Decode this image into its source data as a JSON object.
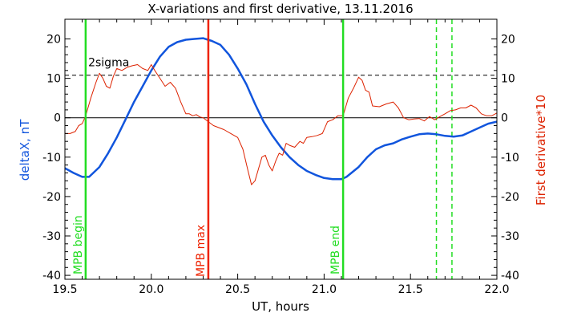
{
  "chart_data": {
    "type": "line",
    "title": "X-variations and first derivative, 13.11.2016",
    "xlabel": "UT, hours",
    "ylabel_left": "deltaX, nT",
    "ylabel_right": "First derivative*10",
    "xlim": [
      19.5,
      22.0
    ],
    "ylim": [
      -41,
      25
    ],
    "x_ticks": [
      "19.5",
      "20.0",
      "20.5",
      "21.0",
      "21.5",
      "22.0"
    ],
    "y_ticks": [
      "20",
      "10",
      "0",
      "-10",
      "-20",
      "-30",
      "-40"
    ],
    "threshold": {
      "label": "2sigma",
      "value": 10.8
    },
    "markers": [
      {
        "label": "MPB begin",
        "x": 19.62,
        "color": "#22dd22"
      },
      {
        "label": "MPB max",
        "x": 20.33,
        "color": "#ee2200"
      },
      {
        "label": "MPB end",
        "x": 21.11,
        "color": "#22dd22"
      }
    ],
    "dashed_markers": [
      21.65,
      21.74
    ],
    "colors": {
      "deltaX": "#1155dd",
      "derivative": "#dd2200",
      "marker_green": "#22dd22",
      "marker_red": "#ee2200"
    },
    "series": [
      {
        "key": "deltaX",
        "x": [
          19.5,
          19.55,
          19.6,
          19.64,
          19.7,
          19.75,
          19.8,
          19.85,
          19.9,
          19.95,
          20.0,
          20.05,
          20.1,
          20.15,
          20.2,
          20.25,
          20.3,
          20.35,
          20.4,
          20.45,
          20.5,
          20.55,
          20.6,
          20.65,
          20.7,
          20.75,
          20.8,
          20.85,
          20.9,
          20.95,
          21.0,
          21.05,
          21.1,
          21.13,
          21.2,
          21.25,
          21.3,
          21.35,
          21.4,
          21.45,
          21.5,
          21.55,
          21.6,
          21.65,
          21.7,
          21.75,
          21.8,
          21.85,
          21.9,
          21.95,
          22.0
        ],
        "values": [
          -12.8,
          -14.0,
          -15.0,
          -15.0,
          -12.5,
          -9.0,
          -5.0,
          -0.5,
          4.0,
          8.0,
          12.0,
          15.5,
          18.0,
          19.2,
          19.8,
          20.0,
          20.2,
          19.5,
          18.5,
          16.0,
          12.5,
          8.5,
          3.5,
          -1.0,
          -4.5,
          -7.5,
          -10.0,
          -12.0,
          -13.5,
          -14.5,
          -15.3,
          -15.6,
          -15.6,
          -15.0,
          -12.5,
          -10.0,
          -8.0,
          -7.0,
          -6.5,
          -5.5,
          -4.8,
          -4.2,
          -4.0,
          -4.2,
          -4.6,
          -4.8,
          -4.5,
          -3.5,
          -2.5,
          -1.5,
          -1.0
        ]
      },
      {
        "key": "derivative",
        "x": [
          19.5,
          19.53,
          19.56,
          19.58,
          19.6,
          19.62,
          19.65,
          19.68,
          19.7,
          19.72,
          19.74,
          19.76,
          19.78,
          19.8,
          19.83,
          19.86,
          19.89,
          19.92,
          19.95,
          19.98,
          20.0,
          20.02,
          20.05,
          20.08,
          20.11,
          20.14,
          20.17,
          20.2,
          20.22,
          20.24,
          20.26,
          20.28,
          20.3,
          20.33,
          20.36,
          20.39,
          20.42,
          20.46,
          20.5,
          20.53,
          20.56,
          20.58,
          20.6,
          20.62,
          20.64,
          20.66,
          20.68,
          20.7,
          20.72,
          20.74,
          20.76,
          20.78,
          20.8,
          20.83,
          20.86,
          20.88,
          20.9,
          20.93,
          20.96,
          20.99,
          21.02,
          21.05,
          21.08,
          21.11,
          21.14,
          21.17,
          21.2,
          21.22,
          21.24,
          21.26,
          21.28,
          21.32,
          21.36,
          21.4,
          21.43,
          21.46,
          21.49,
          21.52,
          21.55,
          21.58,
          21.61,
          21.64,
          21.67,
          21.7,
          21.73,
          21.76,
          21.79,
          21.82,
          21.85,
          21.88,
          21.91,
          21.94,
          21.97,
          22.0
        ],
        "values": [
          -4.0,
          -4.0,
          -3.5,
          -2.0,
          -1.5,
          0.5,
          5.0,
          9.0,
          11.3,
          10.0,
          8.0,
          7.5,
          10.5,
          12.5,
          12.0,
          12.8,
          13.2,
          13.5,
          12.5,
          12.0,
          13.5,
          12.0,
          10.0,
          8.0,
          9.0,
          7.5,
          4.0,
          1.0,
          1.0,
          0.5,
          0.8,
          0.2,
          0.0,
          -1.0,
          -2.0,
          -2.5,
          -3.0,
          -4.0,
          -5.0,
          -8.0,
          -13.5,
          -17.0,
          -16.0,
          -13.0,
          -10.0,
          -9.5,
          -12.0,
          -13.5,
          -11.0,
          -9.0,
          -9.5,
          -6.5,
          -7.0,
          -7.5,
          -6.0,
          -6.5,
          -5.0,
          -4.8,
          -4.5,
          -4.0,
          -1.0,
          -0.5,
          0.5,
          0.5,
          5.0,
          7.5,
          10.3,
          9.5,
          7.0,
          6.5,
          3.0,
          2.8,
          3.5,
          4.0,
          2.5,
          0.0,
          -0.5,
          -0.3,
          -0.2,
          -0.8,
          0.3,
          -0.5,
          0.3,
          1.0,
          1.8,
          2.0,
          2.5,
          2.5,
          3.2,
          2.5,
          1.0,
          0.5,
          0.5,
          1.2
        ]
      }
    ]
  }
}
